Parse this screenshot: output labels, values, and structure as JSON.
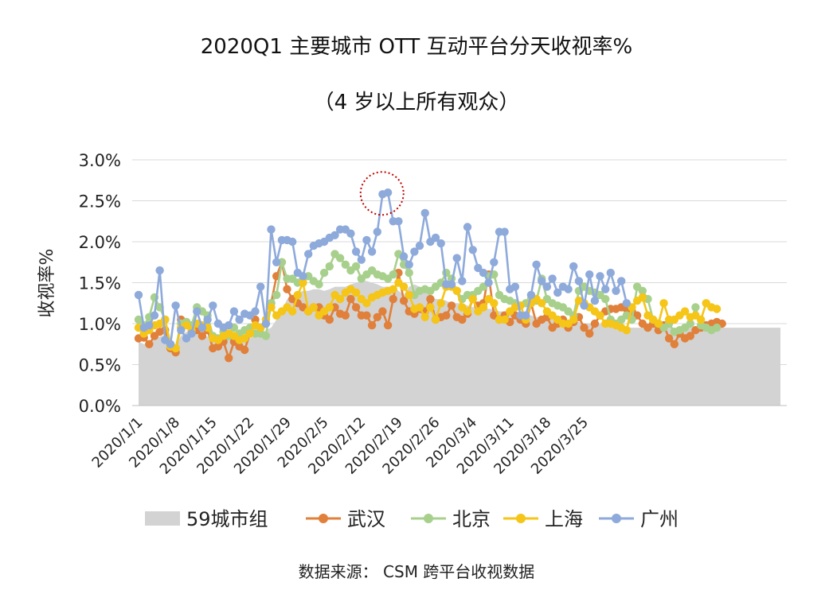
{
  "chart_data": {
    "type": "line",
    "title": "2020Q1 主要城市 OTT 互动平台分天收视率%",
    "subtitle": "（4 岁以上所有观众）",
    "ylabel": "收视率%",
    "xlabel": "",
    "ylim": [
      0,
      3.0
    ],
    "yticks": [
      "0.0%",
      "0.5%",
      "1.0%",
      "1.5%",
      "2.0%",
      "2.5%",
      "3.0%"
    ],
    "xtick_labels": [
      "2020/1/1",
      "2020/1/8",
      "2020/1/15",
      "2020/1/22",
      "2020/1/29",
      "2020/2/5",
      "2020/2/12",
      "2020/2/19",
      "2020/2/26",
      "2020/3/4",
      "2020/3/11",
      "2020/3/18",
      "2020/3/25"
    ],
    "legend_position": "bottom",
    "grid": true,
    "source": "数据来源： CSM 跨平台收视数据",
    "annotation": "dotted circle around Guangzhou peak near 2020/2/13-2/14",
    "series": [
      {
        "name": "59城市组",
        "kind": "area",
        "color": "#d3d3d3",
        "values": [
          0.78,
          0.75,
          0.74,
          0.82,
          0.84,
          0.86,
          0.72,
          0.74,
          0.85,
          0.9,
          0.86,
          0.88,
          0.87,
          0.84,
          0.86,
          0.82,
          0.8,
          0.82,
          0.8,
          0.78,
          0.8,
          0.82,
          0.85,
          0.88,
          0.92,
          0.95,
          1.05,
          1.15,
          1.3,
          1.35,
          1.38,
          1.4,
          1.4,
          1.42,
          1.42,
          1.4,
          1.42,
          1.45,
          1.45,
          1.45,
          1.48,
          1.5,
          1.52,
          1.52,
          1.5,
          1.48,
          1.45,
          1.45,
          1.45,
          1.4,
          1.35,
          1.45,
          1.48,
          1.45,
          1.42,
          1.35,
          1.3,
          1.3,
          1.28,
          1.25,
          1.25,
          1.25,
          1.22,
          1.2,
          1.2,
          1.2,
          1.18,
          1.18,
          1.15,
          1.15,
          1.15,
          1.12,
          1.12,
          1.1,
          1.1,
          1.08,
          1.08,
          1.08,
          1.05,
          1.05,
          1.05,
          1.02,
          1.02,
          1.02,
          1.0,
          1.0,
          1.0,
          1.0,
          0.98,
          0.98,
          0.98,
          0.98,
          0.96,
          0.95,
          0.95,
          0.95,
          0.95,
          0.95,
          0.95,
          0.95,
          0.95,
          0.95,
          0.95,
          0.95,
          0.95,
          0.95,
          0.95,
          0.95,
          0.95,
          0.95,
          0.95,
          0.95,
          0.95,
          0.95,
          0.95,
          0.95,
          0.95,
          0.95,
          0.95,
          0.95,
          0.95,
          0.95
        ]
      },
      {
        "name": "武汉",
        "kind": "line",
        "color": "#e0803a",
        "values": [
          0.82,
          0.83,
          0.75,
          0.85,
          0.9,
          0.92,
          0.7,
          0.65,
          1.05,
          1.02,
          0.9,
          0.92,
          0.85,
          0.92,
          0.7,
          0.72,
          0.78,
          0.58,
          0.78,
          0.72,
          0.68,
          0.88,
          1.05,
          0.95,
          1.0,
          1.25,
          1.58,
          1.75,
          1.42,
          1.3,
          1.25,
          1.2,
          1.15,
          1.2,
          1.2,
          1.1,
          1.05,
          1.2,
          1.12,
          1.1,
          1.3,
          1.2,
          1.1,
          1.1,
          0.98,
          1.08,
          1.15,
          0.98,
          1.3,
          1.62,
          1.28,
          1.15,
          1.12,
          1.18,
          1.15,
          1.3,
          1.05,
          1.08,
          1.1,
          1.22,
          1.08,
          1.05,
          1.12,
          1.3,
          1.22,
          1.25,
          1.6,
          1.1,
          1.05,
          1.1,
          1.02,
          1.1,
          1.05,
          1.0,
          1.25,
          1.0,
          1.05,
          1.08,
          0.95,
          1.0,
          1.05,
          0.95,
          1.02,
          1.08,
          0.95,
          0.88,
          1.0,
          1.1,
          1.15,
          1.18,
          1.18,
          1.2,
          1.18,
          1.15,
          1.1,
          1.0,
          0.95,
          1.0,
          0.92,
          0.98,
          0.82,
          0.75,
          0.88,
          0.82,
          0.85,
          0.92,
          0.95,
          0.98,
          1.0,
          1.02,
          1.0
        ]
      },
      {
        "name": "北京",
        "kind": "line",
        "color": "#a8d08d",
        "values": [
          1.05,
          0.98,
          1.08,
          1.32,
          1.2,
          1.05,
          0.75,
          0.7,
          1.0,
          1.02,
          0.98,
          1.2,
          1.15,
          1.1,
          0.85,
          0.82,
          0.9,
          0.85,
          0.95,
          0.88,
          0.92,
          0.95,
          0.88,
          0.88,
          0.85,
          1.25,
          1.35,
          1.75,
          1.55,
          1.55,
          1.5,
          1.55,
          1.58,
          1.52,
          1.48,
          1.62,
          1.7,
          1.85,
          1.8,
          1.72,
          1.65,
          1.7,
          1.55,
          1.6,
          1.65,
          1.6,
          1.58,
          1.55,
          1.6,
          1.85,
          1.72,
          1.62,
          1.35,
          1.4,
          1.42,
          1.4,
          1.45,
          1.5,
          1.62,
          1.55,
          1.4,
          1.3,
          1.35,
          1.35,
          1.4,
          1.45,
          1.58,
          1.6,
          1.35,
          1.3,
          1.28,
          1.25,
          1.22,
          1.25,
          1.3,
          1.28,
          1.55,
          1.3,
          1.25,
          1.22,
          1.2,
          1.15,
          1.1,
          1.4,
          1.45,
          1.4,
          1.38,
          1.35,
          1.3,
          1.05,
          1.0,
          1.05,
          1.1,
          1.05,
          1.45,
          1.4,
          1.3,
          1.05,
          1.0,
          0.95,
          1.0,
          0.9,
          0.92,
          0.95,
          1.0,
          1.2,
          0.98,
          0.95,
          0.92,
          0.95
        ]
      },
      {
        "name": "上海",
        "kind": "line",
        "color": "#f5c518",
        "values": [
          0.95,
          0.88,
          0.92,
          0.98,
          1.0,
          1.05,
          0.72,
          0.7,
          0.95,
          0.98,
          0.92,
          1.0,
          0.98,
          0.95,
          0.82,
          0.8,
          0.85,
          0.88,
          0.85,
          0.8,
          0.82,
          0.88,
          0.98,
          0.95,
          1.05,
          1.2,
          1.1,
          1.15,
          1.2,
          1.15,
          1.35,
          1.5,
          1.15,
          1.2,
          1.1,
          1.15,
          1.2,
          1.35,
          1.3,
          1.38,
          1.42,
          1.38,
          1.3,
          1.25,
          1.32,
          1.35,
          1.38,
          1.4,
          1.42,
          1.5,
          1.45,
          1.35,
          1.18,
          1.2,
          1.08,
          1.2,
          1.05,
          1.25,
          1.45,
          1.45,
          1.4,
          1.2,
          1.15,
          1.3,
          1.15,
          1.2,
          1.3,
          1.25,
          1.05,
          1.05,
          1.15,
          1.2,
          1.22,
          1.05,
          1.25,
          1.3,
          1.25,
          1.15,
          1.1,
          1.05,
          1.0,
          1.0,
          1.05,
          1.28,
          1.25,
          1.2,
          1.15,
          1.1,
          1.0,
          1.0,
          0.98,
          0.95,
          0.92,
          1.2,
          1.28,
          1.32,
          1.1,
          1.05,
          1.0,
          1.25,
          1.05,
          1.05,
          1.1,
          1.15,
          1.08,
          1.1,
          1.05,
          1.25,
          1.2,
          1.18
        ]
      },
      {
        "name": "广州",
        "kind": "line",
        "color": "#8eaadb",
        "values": [
          1.35,
          0.95,
          0.98,
          1.1,
          1.65,
          0.8,
          0.75,
          1.22,
          0.92,
          0.82,
          0.88,
          1.15,
          0.95,
          1.05,
          1.22,
          1.0,
          0.95,
          0.98,
          1.15,
          1.05,
          1.12,
          1.1,
          1.15,
          1.45,
          1.0,
          2.15,
          1.75,
          2.02,
          2.02,
          2.0,
          1.62,
          1.58,
          1.85,
          1.95,
          1.98,
          2.0,
          2.05,
          2.08,
          2.15,
          2.15,
          2.1,
          1.88,
          1.78,
          2.02,
          1.88,
          2.12,
          2.58,
          2.6,
          2.25,
          2.25,
          1.82,
          1.72,
          1.88,
          1.95,
          2.35,
          2.0,
          2.05,
          1.98,
          1.48,
          1.48,
          1.8,
          1.52,
          2.18,
          1.9,
          1.68,
          1.62,
          1.5,
          1.75,
          2.12,
          2.12,
          1.42,
          1.45,
          1.1,
          1.1,
          1.35,
          1.72,
          1.52,
          1.45,
          1.55,
          1.38,
          1.45,
          1.42,
          1.7,
          1.52,
          1.22,
          1.6,
          1.28,
          1.58,
          1.42,
          1.62,
          1.4,
          1.52,
          1.25
        ]
      }
    ]
  }
}
